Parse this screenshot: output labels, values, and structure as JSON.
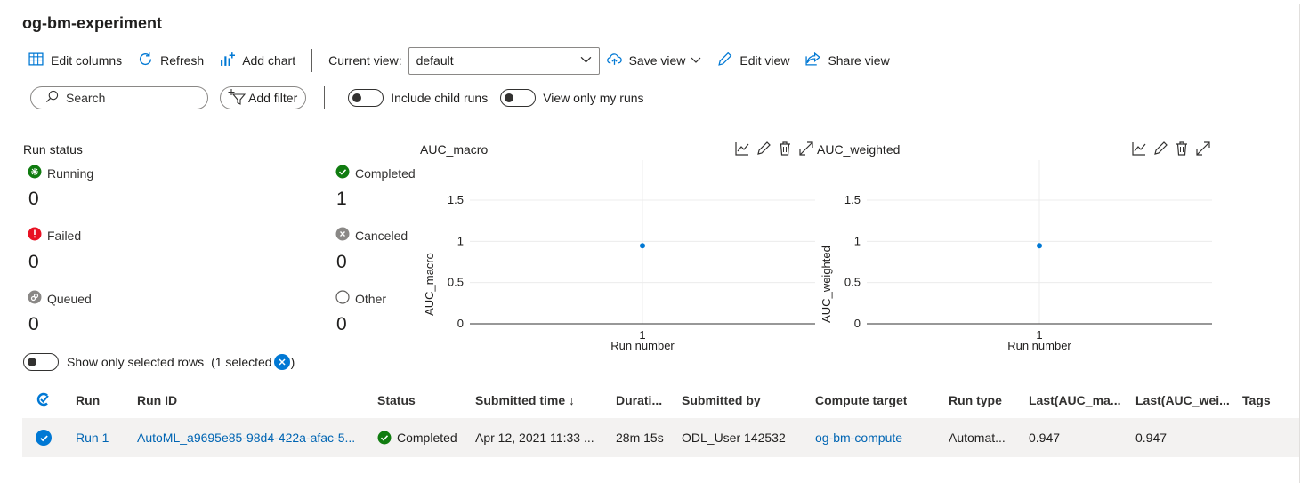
{
  "page": {
    "title": "og-bm-experiment"
  },
  "toolbar": {
    "edit_columns": "Edit columns",
    "refresh": "Refresh",
    "add_chart": "Add chart",
    "current_view_label": "Current view:",
    "current_view_value": "default",
    "save_view": "Save view",
    "edit_view": "Edit view",
    "share_view": "Share view"
  },
  "filters": {
    "search_placeholder": "Search",
    "add_filter": "Add filter",
    "include_child_runs": "Include child runs",
    "view_only_my_runs": "View only my runs"
  },
  "run_status": {
    "title": "Run status",
    "items": [
      {
        "label": "Running",
        "count": "0",
        "icon": "running-icon",
        "color": "#107c10"
      },
      {
        "label": "Completed",
        "count": "1",
        "icon": "check-circle-icon",
        "color": "#107c10"
      },
      {
        "label": "Failed",
        "count": "0",
        "icon": "error-icon",
        "color": "#e81123"
      },
      {
        "label": "Canceled",
        "count": "0",
        "icon": "canceled-icon",
        "color": "#8a8886"
      },
      {
        "label": "Queued",
        "count": "0",
        "icon": "queued-icon",
        "color": "#8a8886"
      },
      {
        "label": "Other",
        "count": "0",
        "icon": "empty-circle-icon",
        "color": "#605e5c"
      }
    ]
  },
  "chart_data": [
    {
      "type": "scatter",
      "title": "AUC_macro",
      "xlabel": "Run number",
      "ylabel": "AUC_macro",
      "x": [
        1
      ],
      "y": [
        0.947
      ],
      "xticks": [
        "1"
      ],
      "yticks": [
        "0",
        "0.5",
        "1",
        "1.5"
      ],
      "ylim": [
        0,
        1.5
      ],
      "color": "#0078d4",
      "grid": true
    },
    {
      "type": "scatter",
      "title": "AUC_weighted",
      "xlabel": "Run number",
      "ylabel": "AUC_weighted",
      "x": [
        1
      ],
      "y": [
        0.947
      ],
      "xticks": [
        "1"
      ],
      "yticks": [
        "0",
        "0.5",
        "1",
        "1.5"
      ],
      "ylim": [
        0,
        1.5
      ],
      "color": "#0078d4",
      "grid": true
    }
  ],
  "selection": {
    "show_only_selected": "Show only selected rows",
    "selected_count": "(1 selected",
    "close_paren": ")"
  },
  "table": {
    "columns": [
      "Run",
      "Run ID",
      "Status",
      "Submitted time ↓",
      "Durati...",
      "Submitted by",
      "Compute target",
      "Run type",
      "Last(AUC_ma...",
      "Last(AUC_wei...",
      "Tags"
    ],
    "rows": [
      {
        "run": "Run 1",
        "run_id": "AutoML_a9695e85-98d4-422a-afac-5...",
        "status": "Completed",
        "submitted_time": "Apr 12, 2021 11:33 ...",
        "duration": "28m 15s",
        "submitted_by": "ODL_User 142532",
        "compute_target": "og-bm-compute",
        "run_type": "Automat...",
        "last_auc_macro": "0.947",
        "last_auc_weighted": "0.947",
        "tags": ""
      }
    ]
  },
  "colors": {
    "accent": "#0078d4",
    "success": "#107c10",
    "error": "#e81123",
    "link": "#0065b3"
  }
}
